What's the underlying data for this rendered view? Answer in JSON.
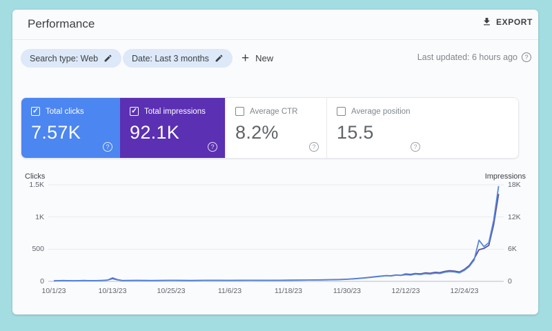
{
  "frame": {
    "border_color": "#a3dce1",
    "page_bg": "#fafbfd"
  },
  "header": {
    "title": "Performance",
    "export_label": "EXPORT"
  },
  "filters": {
    "chips": [
      {
        "label": "Search type: Web"
      },
      {
        "label": "Date: Last 3 months"
      }
    ],
    "new_label": "New",
    "last_updated": "Last updated: 6 hours ago"
  },
  "metric_cards": [
    {
      "label": "Total clicks",
      "value": "7.57K",
      "checked": true,
      "bg": "#4c86f0",
      "fg": "#ffffff"
    },
    {
      "label": "Total impressions",
      "value": "92.1K",
      "checked": true,
      "bg": "#5b30b3",
      "fg": "#ffffff"
    },
    {
      "label": "Average CTR",
      "value": "8.2%",
      "checked": false,
      "bg": "#ffffff",
      "fg": "#5f6368"
    },
    {
      "label": "Average position",
      "value": "15.5",
      "checked": false,
      "bg": "#ffffff",
      "fg": "#5f6368"
    }
  ],
  "chart_data": {
    "type": "line",
    "grid": true,
    "left_axis": {
      "label": "Clicks",
      "tick_labels": [
        "1.5K",
        "1K",
        "500",
        "0"
      ],
      "tick_values": [
        1500,
        1000,
        500,
        0
      ],
      "max": 1500
    },
    "right_axis": {
      "label": "Impressions",
      "tick_labels": [
        "18K",
        "12K",
        "6K",
        "0"
      ],
      "tick_values": [
        18000,
        12000,
        6000,
        0
      ],
      "max": 18000
    },
    "x_ticks": [
      {
        "d": 0,
        "label": "10/1/23"
      },
      {
        "d": 12,
        "label": "10/13/23"
      },
      {
        "d": 24,
        "label": "10/25/23"
      },
      {
        "d": 36,
        "label": "11/6/23"
      },
      {
        "d": 48,
        "label": "11/18/23"
      },
      {
        "d": 60,
        "label": "11/30/23"
      },
      {
        "d": 72,
        "label": "12/12/23"
      },
      {
        "d": 84,
        "label": "12/24/23"
      }
    ],
    "series": [
      {
        "name": "Clicks",
        "color": "#5587dc",
        "axis": "left"
      },
      {
        "name": "Impressions",
        "color": "#55509e",
        "axis": "right"
      }
    ],
    "points_format": [
      "day_index",
      "clicks",
      "impressions"
    ],
    "points": [
      [
        0,
        8,
        100
      ],
      [
        2,
        12,
        150
      ],
      [
        4,
        9,
        120
      ],
      [
        6,
        13,
        160
      ],
      [
        8,
        10,
        130
      ],
      [
        10,
        14,
        170
      ],
      [
        11,
        20,
        230
      ],
      [
        12,
        55,
        520
      ],
      [
        13,
        28,
        300
      ],
      [
        14,
        12,
        150
      ],
      [
        17,
        14,
        170
      ],
      [
        20,
        12,
        150
      ],
      [
        24,
        16,
        180
      ],
      [
        28,
        13,
        160
      ],
      [
        32,
        16,
        190
      ],
      [
        36,
        14,
        175
      ],
      [
        40,
        17,
        205
      ],
      [
        44,
        15,
        190
      ],
      [
        48,
        18,
        220
      ],
      [
        52,
        20,
        250
      ],
      [
        55,
        22,
        280
      ],
      [
        58,
        26,
        330
      ],
      [
        60,
        32,
        400
      ],
      [
        62,
        42,
        530
      ],
      [
        64,
        55,
        700
      ],
      [
        66,
        72,
        900
      ],
      [
        68,
        88,
        1080
      ],
      [
        69,
        84,
        1040
      ],
      [
        70,
        96,
        1180
      ],
      [
        71,
        92,
        1130
      ],
      [
        72,
        104,
        1370
      ],
      [
        73,
        98,
        1300
      ],
      [
        74,
        112,
        1470
      ],
      [
        75,
        106,
        1400
      ],
      [
        76,
        120,
        1580
      ],
      [
        77,
        114,
        1510
      ],
      [
        78,
        128,
        1690
      ],
      [
        79,
        122,
        1620
      ],
      [
        80,
        142,
        1870
      ],
      [
        81,
        152,
        1990
      ],
      [
        82,
        146,
        1920
      ],
      [
        83,
        132,
        1750
      ],
      [
        84,
        170,
        2220
      ],
      [
        85,
        230,
        2970
      ],
      [
        86,
        330,
        4200
      ],
      [
        87,
        640,
        5900
      ],
      [
        88,
        540,
        6150
      ],
      [
        89,
        600,
        6700
      ],
      [
        90,
        950,
        10600
      ],
      [
        91,
        1480,
        16300
      ]
    ]
  }
}
